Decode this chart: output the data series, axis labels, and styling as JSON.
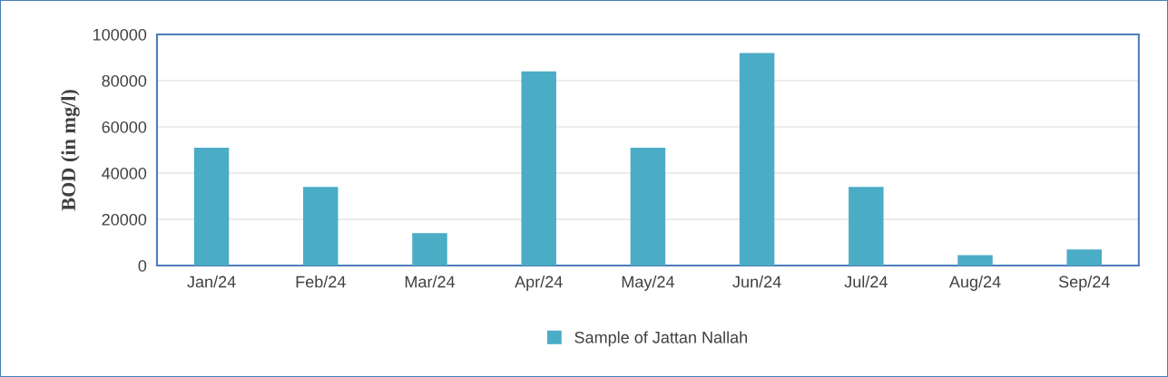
{
  "chart_data": {
    "type": "bar",
    "ylabel": "BOD (in mg/l)",
    "categories": [
      "Jan/24",
      "Feb/24",
      "Mar/24",
      "Apr/24",
      "May/24",
      "Jun/24",
      "Jul/24",
      "Aug/24",
      "Sep/24"
    ],
    "series": [
      {
        "name": "Sample of Jattan Nallah",
        "color": "#4bacc6",
        "values": [
          51000,
          34000,
          14000,
          84000,
          51000,
          92000,
          34000,
          4500,
          7000
        ]
      }
    ],
    "ylim": [
      0,
      100000
    ],
    "yticks": [
      0,
      20000,
      40000,
      60000,
      80000,
      100000
    ],
    "grid": "y",
    "legend": "bottom"
  }
}
